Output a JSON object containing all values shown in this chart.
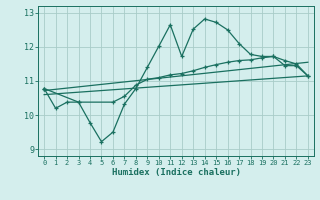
{
  "xlabel": "Humidex (Indice chaleur)",
  "bg_color": "#d4eeed",
  "grid_color": "#a8ccc8",
  "line_color": "#1a7060",
  "xlim": [
    -0.5,
    23.5
  ],
  "ylim": [
    8.8,
    13.2
  ],
  "yticks": [
    9,
    10,
    11,
    12,
    13
  ],
  "xticks": [
    0,
    1,
    2,
    3,
    4,
    5,
    6,
    7,
    8,
    9,
    10,
    11,
    12,
    13,
    14,
    15,
    16,
    17,
    18,
    19,
    20,
    21,
    22,
    23
  ],
  "line1_x": [
    0,
    1,
    2,
    3,
    4,
    5,
    6,
    7,
    8,
    9,
    10,
    11,
    12,
    13,
    14,
    15,
    16,
    17,
    18,
    19,
    20,
    21,
    22,
    23
  ],
  "line1_y": [
    10.78,
    10.2,
    10.38,
    10.38,
    9.78,
    9.22,
    9.5,
    10.32,
    10.78,
    11.4,
    12.02,
    12.65,
    11.72,
    12.52,
    12.82,
    12.72,
    12.5,
    12.1,
    11.78,
    11.72,
    11.72,
    11.45,
    11.45,
    11.15
  ],
  "line2_x": [
    0,
    3,
    6,
    7,
    8,
    9,
    10,
    11,
    12,
    13,
    14,
    15,
    16,
    17,
    18,
    19,
    20,
    21,
    22,
    23
  ],
  "line2_y": [
    10.78,
    10.38,
    10.38,
    10.55,
    10.88,
    11.05,
    11.1,
    11.18,
    11.22,
    11.3,
    11.4,
    11.48,
    11.55,
    11.6,
    11.62,
    11.68,
    11.72,
    11.6,
    11.5,
    11.15
  ],
  "line3_x": [
    0,
    23
  ],
  "line3_y": [
    10.6,
    11.15
  ],
  "line4_x": [
    0,
    23
  ],
  "line4_y": [
    10.72,
    11.55
  ]
}
